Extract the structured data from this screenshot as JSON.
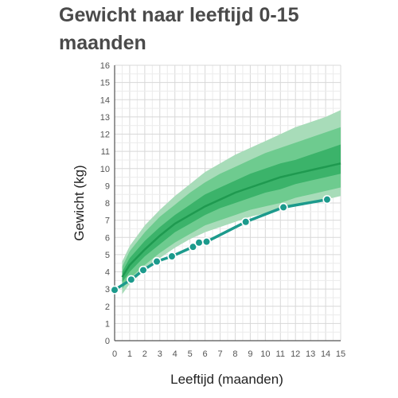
{
  "page": {
    "title": "Gewicht naar leeftijd 0-15 maanden"
  },
  "chart_data": {
    "type": "line",
    "title": "Gewicht naar leeftijd 0-15 maanden",
    "xlabel": "Leeftijd (maanden)",
    "ylabel": "Gewicht (kg)",
    "xlim": [
      0,
      15
    ],
    "ylim": [
      0,
      16
    ],
    "x_ticks": [
      "0",
      "1",
      "2",
      "3",
      "4",
      "5",
      "6",
      "7",
      "8",
      "9",
      "10",
      "11",
      "12",
      "13",
      "14",
      "15"
    ],
    "y_ticks": [
      "0",
      "1",
      "2",
      "3",
      "4",
      "5",
      "6",
      "7",
      "8",
      "9",
      "10",
      "11",
      "12",
      "13",
      "14",
      "15",
      "16"
    ],
    "grid": true,
    "colors": {
      "band_outer": "#a8dcb9",
      "band_middle": "#6ecb8f",
      "band_inner": "#3bb36a",
      "median": "#1f9a50",
      "measurements": "#1c9a8c"
    },
    "reference_bands": {
      "x": [
        0.5,
        1,
        2,
        3,
        4,
        5,
        6,
        7,
        8,
        9,
        10,
        11,
        12,
        13,
        14,
        15
      ],
      "p_low_outer": [
        2.7,
        3.3,
        4.1,
        4.8,
        5.4,
        5.9,
        6.3,
        6.6,
        6.9,
        7.2,
        7.4,
        7.6,
        7.8,
        8.0,
        8.2,
        8.4
      ],
      "p_low_mid": [
        3.0,
        3.6,
        4.4,
        5.1,
        5.7,
        6.2,
        6.7,
        7.0,
        7.3,
        7.6,
        7.8,
        8.0,
        8.3,
        8.5,
        8.7,
        8.9
      ],
      "p_low_inner": [
        3.4,
        4.0,
        4.9,
        5.6,
        6.3,
        6.8,
        7.3,
        7.7,
        8.0,
        8.3,
        8.6,
        8.8,
        9.1,
        9.3,
        9.5,
        9.7
      ],
      "median": [
        3.7,
        4.4,
        5.3,
        6.1,
        6.8,
        7.3,
        7.8,
        8.2,
        8.6,
        8.9,
        9.2,
        9.5,
        9.7,
        9.9,
        10.1,
        10.3
      ],
      "p_high_inner": [
        4.0,
        4.8,
        5.8,
        6.6,
        7.3,
        7.9,
        8.5,
        8.9,
        9.3,
        9.7,
        10.0,
        10.3,
        10.5,
        10.8,
        11.1,
        11.4
      ],
      "p_high_mid": [
        4.3,
        5.2,
        6.3,
        7.2,
        7.9,
        8.6,
        9.2,
        9.7,
        10.1,
        10.5,
        10.9,
        11.2,
        11.5,
        11.8,
        12.1,
        12.4
      ],
      "p_high_outer": [
        4.6,
        5.5,
        6.7,
        7.6,
        8.4,
        9.1,
        9.8,
        10.3,
        10.8,
        11.2,
        11.6,
        12.0,
        12.4,
        12.7,
        13.0,
        13.4
      ]
    },
    "series": [
      {
        "x": [
          0,
          1.1,
          1.9,
          2.8,
          3.8,
          5.2,
          5.6,
          6.1,
          8.7,
          11.2,
          14.1
        ],
        "y": [
          2.95,
          3.55,
          4.1,
          4.6,
          4.9,
          5.45,
          5.7,
          5.75,
          6.9,
          7.75,
          8.2
        ]
      }
    ]
  }
}
